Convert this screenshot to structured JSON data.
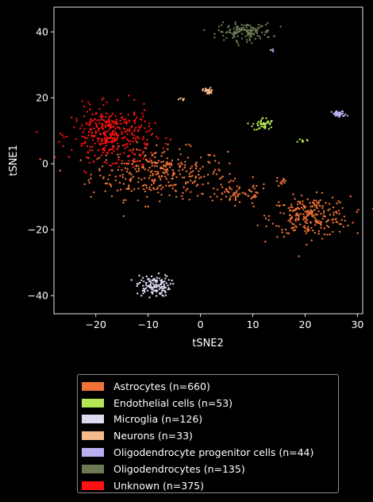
{
  "chart_data": {
    "type": "scatter",
    "xlabel": "tSNE2",
    "ylabel": "tSNE1",
    "xlim": [
      -28,
      31
    ],
    "ylim": [
      -45.5,
      47.5
    ],
    "xticks": [
      -20,
      -10,
      0,
      10,
      20,
      30
    ],
    "yticks": [
      -40,
      -20,
      0,
      20,
      40
    ],
    "legend_position": "below",
    "series": [
      {
        "name": "Astrocytes (n=660)",
        "color": "#f07238",
        "n": 660,
        "clusters": [
          {
            "cx": -8,
            "cy": -3,
            "sx": 6.5,
            "sy": 3.8,
            "n": 330
          },
          {
            "cx": 7,
            "cy": -9,
            "sx": 3.2,
            "sy": 1.8,
            "n": 70
          },
          {
            "cx": 15.5,
            "cy": -5.5,
            "sx": 0.6,
            "sy": 0.8,
            "n": 12
          },
          {
            "cx": 21,
            "cy": -16,
            "sx": 3.8,
            "sy": 3.0,
            "n": 248
          }
        ]
      },
      {
        "name": "Endothelial cells (n=53)",
        "color": "#b5e655",
        "n": 53,
        "clusters": [
          {
            "cx": 12,
            "cy": 12,
            "sx": 1.0,
            "sy": 1.0,
            "n": 45
          },
          {
            "cx": 19.5,
            "cy": 7,
            "sx": 0.4,
            "sy": 0.3,
            "n": 8
          }
        ]
      },
      {
        "name": "Microglia (n=126)",
        "color": "#dcd9f0",
        "n": 126,
        "clusters": [
          {
            "cx": -9,
            "cy": -37,
            "sx": 1.6,
            "sy": 1.6,
            "n": 126
          }
        ]
      },
      {
        "name": "Neurons (n=33)",
        "color": "#f5b98a",
        "n": 33,
        "clusters": [
          {
            "cx": 1.5,
            "cy": 22,
            "sx": 0.5,
            "sy": 0.5,
            "n": 28
          },
          {
            "cx": -3.5,
            "cy": 19.5,
            "sx": 0.3,
            "sy": 0.4,
            "n": 5
          }
        ]
      },
      {
        "name": "Oligodendrocyte progenitor cells (n=44)",
        "color": "#b8b0f0",
        "n": 44,
        "clusters": [
          {
            "cx": 26.5,
            "cy": 15,
            "sx": 0.7,
            "sy": 0.5,
            "n": 40
          },
          {
            "cx": 13.5,
            "cy": 34.5,
            "sx": 0.3,
            "sy": 0.3,
            "n": 4
          }
        ]
      },
      {
        "name": "Oligodendrocytes (n=135)",
        "color": "#6b7a52",
        "n": 135,
        "clusters": [
          {
            "cx": 8.5,
            "cy": 40,
            "sx": 2.6,
            "sy": 1.3,
            "n": 135
          }
        ]
      },
      {
        "name": "Unknown (n=375)",
        "color": "#ff1111",
        "n": 375,
        "clusters": [
          {
            "cx": -17,
            "cy": 9,
            "sx": 3.8,
            "sy": 4.0,
            "n": 360
          },
          {
            "cx": -12,
            "cy": 2,
            "sx": 1.5,
            "sy": 1.5,
            "n": 15
          }
        ]
      }
    ]
  }
}
